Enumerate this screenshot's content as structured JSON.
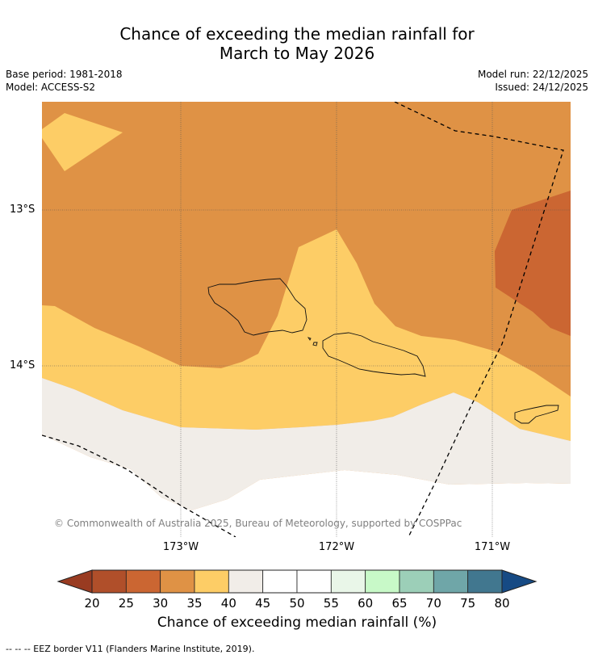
{
  "header": {
    "title_line1": "Chance of exceeding the median rainfall for",
    "title_line2": "March to May 2026",
    "base_period": "Base period: 1981-2018",
    "model": "Model: ACCESS-S2",
    "model_run": "Model run: 22/12/2025",
    "issued": "Issued: 24/12/2025"
  },
  "map": {
    "lat_labels": [
      "13°S",
      "14°S"
    ],
    "lon_labels": [
      "173°W",
      "172°W",
      "171°W"
    ],
    "copyright": "© Commonwealth of Australia 2025, Bureau of Meteorology, supported by COSPPac",
    "region_colors": {
      "30-35": "#df9245",
      "35-40": "#fdcd66",
      "25-30": "#cb6632",
      "40-45": "#f1ede8",
      "45-55": "#ffffff"
    }
  },
  "colorbar": {
    "ticks": [
      "20",
      "25",
      "30",
      "35",
      "40",
      "45",
      "50",
      "55",
      "60",
      "65",
      "70",
      "75",
      "80"
    ],
    "colors": [
      "#993b21",
      "#b04f2a",
      "#cb6632",
      "#df9245",
      "#fdcd66",
      "#f1ede8",
      "#ffffff",
      "#ffffff",
      "#e9f6e8",
      "#c8f9c8",
      "#9ccfb8",
      "#6fa6a8",
      "#41778f",
      "#164a84"
    ],
    "title": "Chance of exceeding median rainfall (%)"
  },
  "footnote": "--  --  -- EEZ border V11 (Flanders Marine Institute, 2019)."
}
